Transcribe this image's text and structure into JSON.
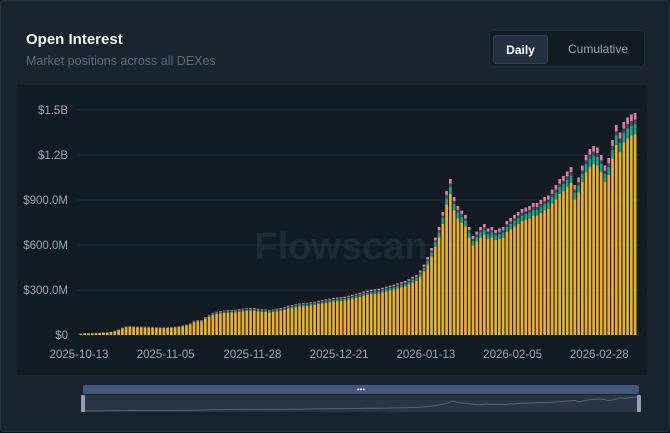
{
  "header": {
    "title": "Open Interest",
    "subtitle": "Market positions across all DEXes"
  },
  "toggle": {
    "daily_label": "Daily",
    "cumulative_label": "Cumulative",
    "selected": "Daily"
  },
  "watermark": "Flowscan",
  "slider": {
    "handle_glyph": "•••"
  },
  "colors": {
    "bar_main": "#e8b02e",
    "bar_green": "#17a78f",
    "bar_slate": "#3e4f62",
    "bar_pink": "#e77aa4",
    "grid": "#222d38",
    "slider": "#42557a"
  },
  "chart_data": {
    "type": "bar",
    "stacked": true,
    "title": "Open Interest",
    "subtitle": "Market positions across all DEXes",
    "x_tick_labels": [
      "2025-10-13",
      "2025-11-05",
      "2025-11-28",
      "2025-12-21",
      "2026-01-13",
      "2026-02-05",
      "2026-02-28"
    ],
    "x_start": "2025-10-13",
    "y_tick_labels": [
      "$0",
      "$300.0M",
      "$600.0M",
      "$900.0M",
      "$1.2B",
      "$1.5B"
    ],
    "ylim": [
      0,
      1500000000
    ],
    "grid": true,
    "legend": "none",
    "daily_total_usd_millions": [
      10,
      12,
      12,
      13,
      14,
      15,
      17,
      18,
      22,
      28,
      38,
      50,
      58,
      60,
      58,
      57,
      56,
      55,
      55,
      54,
      53,
      52,
      52,
      52,
      53,
      56,
      60,
      65,
      70,
      78,
      95,
      100,
      100,
      120,
      135,
      148,
      155,
      160,
      163,
      165,
      166,
      168,
      172,
      176,
      178,
      180,
      180,
      175,
      172,
      170,
      168,
      170,
      175,
      180,
      185,
      195,
      200,
      205,
      210,
      212,
      215,
      218,
      222,
      228,
      232,
      238,
      242,
      248,
      250,
      252,
      255,
      262,
      268,
      275,
      282,
      290,
      296,
      302,
      305,
      308,
      315,
      322,
      330,
      336,
      345,
      352,
      360,
      372,
      388,
      400,
      430,
      470,
      520,
      580,
      650,
      720,
      820,
      960,
      1040,
      920,
      860,
      830,
      800,
      720,
      660,
      690,
      720,
      740,
      710,
      720,
      700,
      710,
      720,
      760,
      780,
      800,
      820,
      840,
      850,
      860,
      880,
      880,
      900,
      920,
      930,
      970,
      1000,
      1040,
      1060,
      1090,
      1120,
      1000,
      1050,
      1130,
      1200,
      1240,
      1260,
      1250,
      1200,
      1130,
      1180,
      1300,
      1400,
      1350,
      1420,
      1450,
      1470,
      1480
    ],
    "series_share": {
      "main": 0.905,
      "green": 0.045,
      "slate": 0.02,
      "pink": 0.03
    }
  }
}
